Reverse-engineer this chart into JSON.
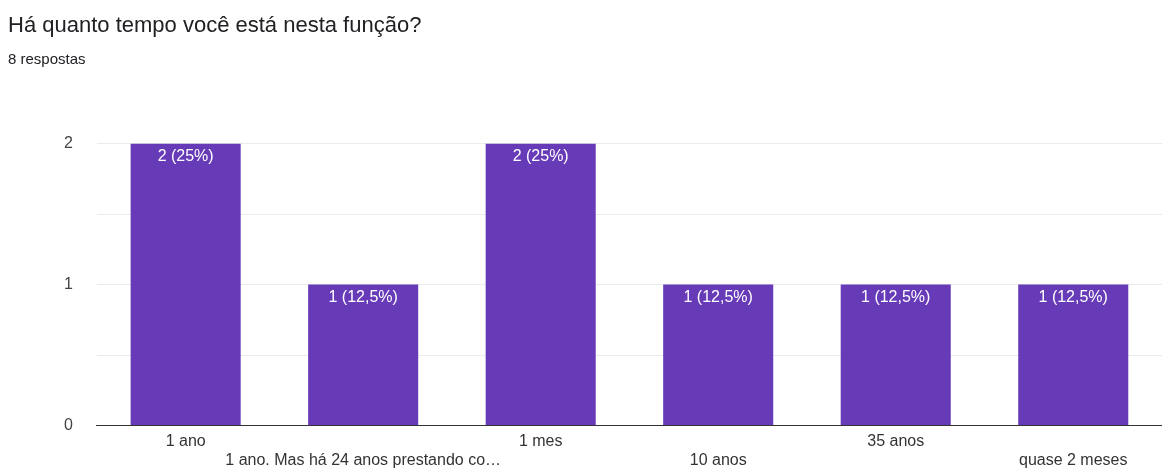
{
  "chart_data": {
    "type": "bar",
    "title": "Há quanto tempo você está nesta função?",
    "subtitle": "8 respostas",
    "categories": [
      "1 ano",
      "1 ano. Mas há 24 anos prestando co…",
      "1 mes",
      "10 anos",
      "35 anos",
      "quase 2 meses"
    ],
    "values": [
      2,
      1,
      2,
      1,
      1,
      1
    ],
    "color": "#673ab7",
    "value_labels": [
      "2 (25%)",
      "1 (12,5%)",
      "2 (25%)",
      "1 (12,5%)",
      "1 (12,5%)",
      "1 (12,5%)"
    ],
    "ylim": [
      0,
      2
    ],
    "yticks": [
      0,
      {
        "value": 0.5,
        "label": null
      },
      1,
      {
        "value": 1.5,
        "label": null
      },
      2
    ],
    "grid": "y",
    "legend": false
  }
}
